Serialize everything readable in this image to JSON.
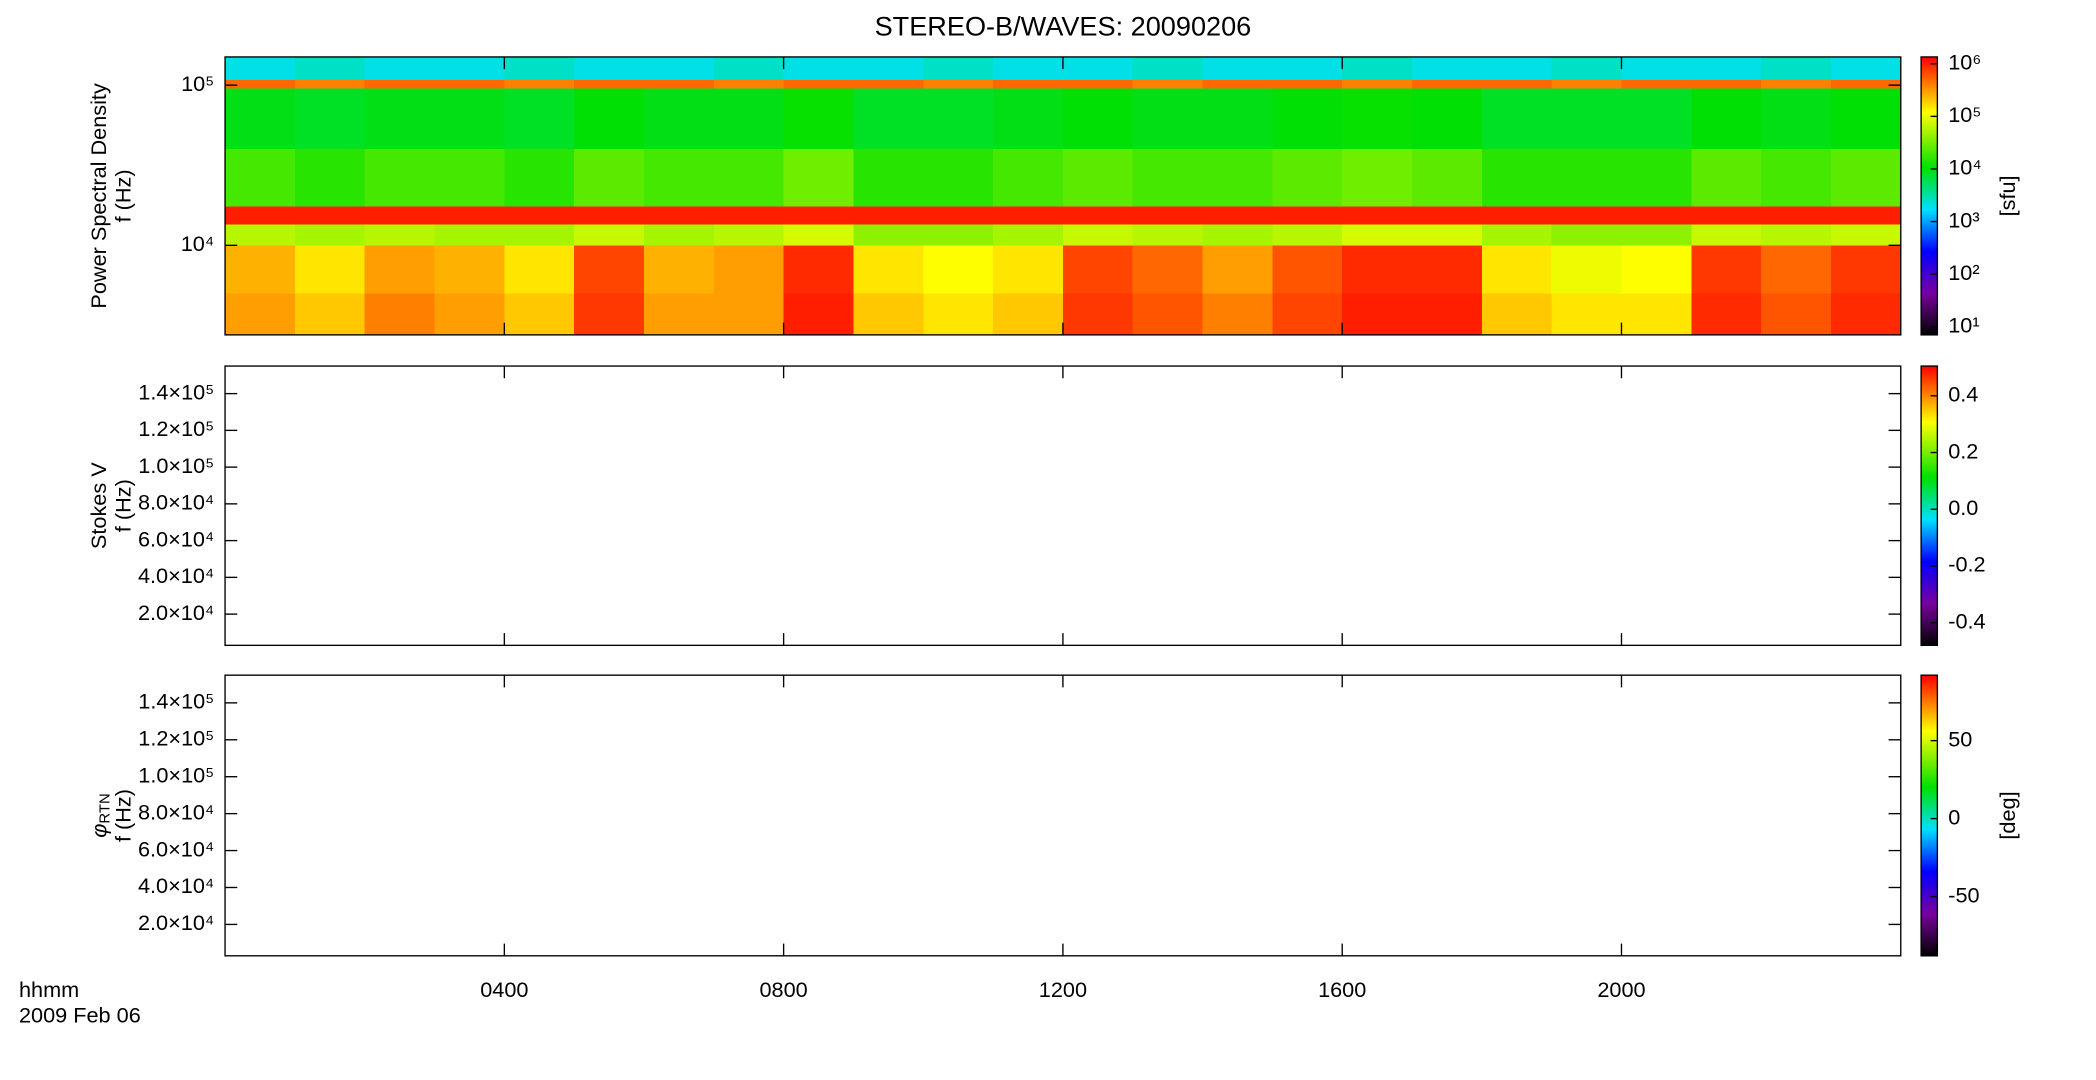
{
  "title": "STEREO-B/WAVES: 20090206",
  "chart_data": [
    {
      "type": "heatmap",
      "ylabel": [
        "Power Spectral Density",
        "f (Hz)"
      ],
      "log_y": true,
      "log_z": true,
      "ylim": [
        2760,
        150000
      ],
      "yticks": [
        {
          "value": 10000,
          "label": "10⁴"
        },
        {
          "value": 100000,
          "label": "10⁵"
        }
      ],
      "xbins": [
        0,
        1,
        2,
        3,
        4,
        5,
        6,
        7,
        8,
        9,
        10,
        11,
        12,
        13,
        14,
        15,
        16,
        17,
        18,
        19,
        20,
        21,
        22,
        23,
        24
      ],
      "ybins": [
        2760,
        5000,
        10000,
        13500,
        17500,
        40000,
        95000,
        108000,
        150000
      ],
      "z": [
        [
          300000,
          200000,
          400000,
          300000,
          200000,
          800000,
          300000,
          300000,
          1000000,
          200000,
          150000,
          200000,
          800000,
          600000,
          400000,
          700000,
          1000000,
          1000000,
          200000,
          150000,
          150000,
          900000,
          600000,
          900000
        ],
        [
          250000,
          150000,
          300000,
          250000,
          150000,
          700000,
          250000,
          300000,
          900000,
          150000,
          120000,
          150000,
          700000,
          500000,
          300000,
          600000,
          900000,
          900000,
          150000,
          100000,
          120000,
          800000,
          500000,
          800000
        ],
        [
          60000,
          50000,
          60000,
          50000,
          50000,
          70000,
          50000,
          60000,
          80000,
          40000,
          40000,
          50000,
          70000,
          60000,
          50000,
          60000,
          80000,
          80000,
          50000,
          40000,
          40000,
          70000,
          60000,
          70000
        ],
        [
          1000000,
          1000000,
          1000000,
          1000000,
          1000000,
          1000000,
          1000000,
          1000000,
          1000000,
          1000000,
          1000000,
          1000000,
          1000000,
          1000000,
          1000000,
          1000000,
          1000000,
          1000000,
          1000000,
          1000000,
          1000000,
          1000000,
          1000000,
          1000000
        ],
        [
          20000,
          15000,
          20000,
          20000,
          15000,
          25000,
          20000,
          20000,
          30000,
          15000,
          15000,
          20000,
          25000,
          20000,
          20000,
          25000,
          30000,
          25000,
          15000,
          15000,
          15000,
          25000,
          20000,
          25000
        ],
        [
          9000,
          8000,
          9000,
          9000,
          8000,
          10000,
          9000,
          9000,
          11000,
          8000,
          8000,
          9000,
          10000,
          9000,
          9000,
          10000,
          11000,
          10000,
          8000,
          8000,
          8000,
          10000,
          9000,
          10000
        ],
        [
          500000,
          400000,
          500000,
          500000,
          400000,
          500000,
          500000,
          400000,
          500000,
          500000,
          400000,
          500000,
          500000,
          400000,
          500000,
          500000,
          400000,
          500000,
          500000,
          400000,
          500000,
          500000,
          400000,
          500000
        ],
        [
          2000,
          2500,
          2000,
          2000,
          2500,
          2000,
          2000,
          2500,
          2000,
          2000,
          2500,
          2000,
          2000,
          2500,
          2000,
          2000,
          2500,
          2000,
          2000,
          2500,
          2000,
          2000,
          2500,
          2000
        ]
      ],
      "zlim": [
        7,
        1350000
      ],
      "zticks": [
        {
          "value": 10,
          "label": "10¹"
        },
        {
          "value": 100,
          "label": "10²"
        },
        {
          "value": 1000,
          "label": "10³"
        },
        {
          "value": 10000,
          "label": "10⁴"
        },
        {
          "value": 100000,
          "label": "10⁵"
        },
        {
          "value": 1000000,
          "label": "10⁶"
        }
      ],
      "zlabel": "[sfu]"
    },
    {
      "type": "heatmap",
      "ylabel": [
        "Stokes V",
        "f (Hz)"
      ],
      "ylim": [
        3000,
        155000
      ],
      "yticks": [
        {
          "value": 20000,
          "label": "2.0×10⁴"
        },
        {
          "value": 40000,
          "label": "4.0×10⁴"
        },
        {
          "value": 60000,
          "label": "6.0×10⁴"
        },
        {
          "value": 80000,
          "label": "8.0×10⁴"
        },
        {
          "value": 100000,
          "label": "1.0×10⁵"
        },
        {
          "value": 120000,
          "label": "1.2×10⁵"
        },
        {
          "value": 140000,
          "label": "1.4×10⁵"
        }
      ],
      "zlim": [
        -0.48,
        0.505
      ],
      "zticks": [
        -0.4,
        -0.2,
        {
          "value": 0,
          "label": "0.0"
        },
        0.2,
        0.4
      ]
    },
    {
      "type": "heatmap",
      "ylabel": [
        {
          "symbol": "φ",
          "subscript": "RTN"
        },
        "f (Hz)"
      ],
      "ylim": [
        3000,
        155000
      ],
      "yticks": [
        {
          "value": 20000,
          "label": "2.0×10⁴"
        },
        {
          "value": 40000,
          "label": "4.0×10⁴"
        },
        {
          "value": 60000,
          "label": "6.0×10⁴"
        },
        {
          "value": 80000,
          "label": "8.0×10⁴"
        },
        {
          "value": 100000,
          "label": "1.0×10⁵"
        },
        {
          "value": 120000,
          "label": "1.2×10⁵"
        },
        {
          "value": 140000,
          "label": "1.4×10⁵"
        }
      ],
      "zlim": [
        -88,
        92
      ],
      "zticks": [
        -50,
        0,
        50
      ],
      "zlabel": "[deg]",
      "xlim": [
        0,
        24
      ],
      "xticks": [
        {
          "value": 4,
          "label": "0400"
        },
        {
          "value": 8,
          "label": "0800"
        },
        {
          "value": 12,
          "label": "1200"
        },
        {
          "value": 16,
          "label": "1600"
        },
        {
          "value": 20,
          "label": "2000"
        }
      ],
      "xlabel": "hhmm",
      "date": "2009 Feb 06"
    }
  ]
}
